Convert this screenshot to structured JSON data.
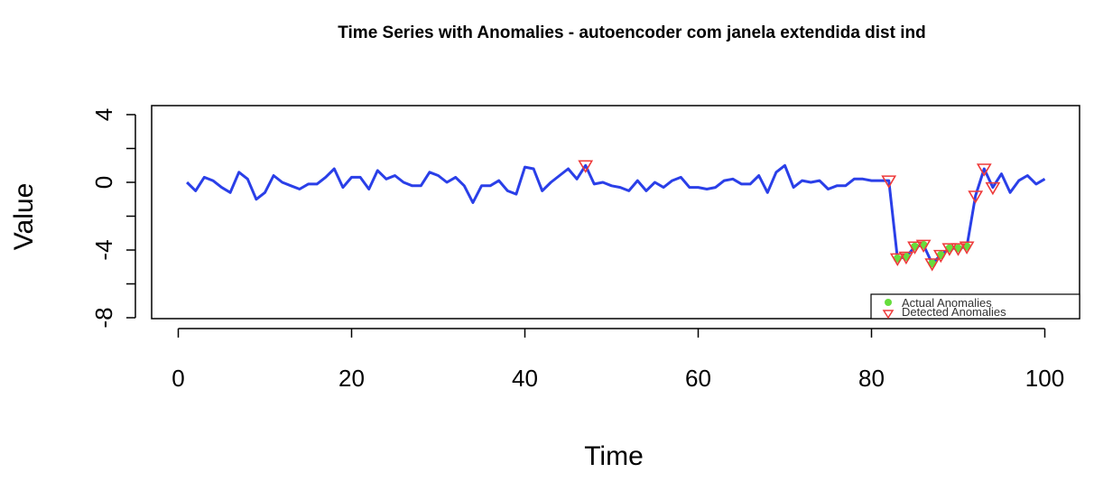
{
  "chart_data": {
    "type": "line",
    "title": "Time Series with Anomalies - autoencoder com janela extendida dist ind",
    "xlabel": "Time",
    "ylabel": "Value",
    "xlim": [
      0,
      101
    ],
    "ylim": [
      -8,
      4
    ],
    "x_ticks": [
      0,
      20,
      40,
      60,
      80,
      100
    ],
    "x_tick_labels": [
      "0",
      "20",
      "40",
      "60",
      "80",
      "100"
    ],
    "y_ticks": [
      -8,
      -4,
      0,
      4
    ],
    "y_tick_labels": [
      "-8",
      "-4",
      "0",
      "4"
    ],
    "grid": false,
    "legend_position": "bottom-right",
    "series": [
      {
        "x": [
          1,
          2,
          3,
          4,
          5,
          6,
          7,
          8,
          9,
          10,
          11,
          12,
          13,
          14,
          15,
          16,
          17,
          18,
          19,
          20,
          21,
          22,
          23,
          24,
          25,
          26,
          27,
          28,
          29,
          30,
          31,
          32,
          33,
          34,
          35,
          36,
          37,
          38,
          39,
          40,
          41,
          42,
          43,
          44,
          45,
          46,
          47,
          48,
          49,
          50,
          51,
          52,
          53,
          54,
          55,
          56,
          57,
          58,
          59,
          60,
          61,
          62,
          63,
          64,
          65,
          66,
          67,
          68,
          69,
          70,
          71,
          72,
          73,
          74,
          75,
          76,
          77,
          78,
          79,
          80,
          81,
          82,
          83,
          84,
          85,
          86,
          87,
          88,
          89,
          90,
          91,
          92,
          93,
          94,
          95,
          96,
          97,
          98,
          99,
          100
        ],
        "values": [
          0.0,
          -0.5,
          0.3,
          0.1,
          -0.3,
          -0.6,
          0.6,
          0.2,
          -1.0,
          -0.6,
          0.4,
          0.0,
          -0.2,
          -0.4,
          -0.1,
          -0.1,
          0.3,
          0.8,
          -0.3,
          0.3,
          0.3,
          -0.4,
          0.7,
          0.2,
          0.4,
          0.0,
          -0.2,
          -0.2,
          0.6,
          0.4,
          0.0,
          0.3,
          -0.2,
          -1.2,
          -0.2,
          -0.2,
          0.1,
          -0.5,
          -0.7,
          0.9,
          0.8,
          -0.5,
          0.0,
          0.4,
          0.8,
          0.2,
          1.0,
          -0.1,
          0.0,
          -0.2,
          -0.3,
          -0.5,
          0.1,
          -0.5,
          0.0,
          -0.3,
          0.1,
          0.3,
          -0.3,
          -0.3,
          -0.4,
          -0.3,
          0.1,
          0.2,
          -0.1,
          -0.1,
          0.4,
          -0.6,
          0.6,
          1.0,
          -0.3,
          0.1,
          0.0,
          0.1,
          -0.4,
          -0.2,
          -0.2,
          0.2,
          0.2,
          0.1,
          0.1,
          0.1,
          -4.5,
          -4.4,
          -3.8,
          -3.7,
          -4.8,
          -4.3,
          -3.9,
          -3.9,
          -3.8,
          -0.8,
          0.8,
          -0.3,
          0.5,
          -0.6,
          0.1,
          0.4,
          -0.1,
          0.2
        ]
      }
    ],
    "actual_anomalies": {
      "x": [
        83,
        84,
        85,
        86,
        87,
        88,
        89,
        90,
        91
      ],
      "values": [
        -4.5,
        -4.4,
        -3.8,
        -3.7,
        -4.8,
        -4.3,
        -3.9,
        -3.9,
        -3.8
      ]
    },
    "detected_anomalies": {
      "x": [
        47,
        82,
        83,
        84,
        85,
        86,
        87,
        88,
        89,
        90,
        91,
        92,
        93,
        94
      ],
      "values": [
        1.0,
        0.1,
        -4.5,
        -4.4,
        -3.8,
        -3.7,
        -4.8,
        -4.3,
        -3.9,
        -3.9,
        -3.8,
        -0.8,
        0.8,
        -0.3
      ]
    },
    "legend": {
      "actual_label": "Actual Anomalies",
      "detected_label": "Detected Anomalies"
    },
    "colors": {
      "line": "#2a3fe8",
      "actual": "#66dd3c",
      "detected": "#ee3a3a",
      "axis": "#000000"
    }
  }
}
